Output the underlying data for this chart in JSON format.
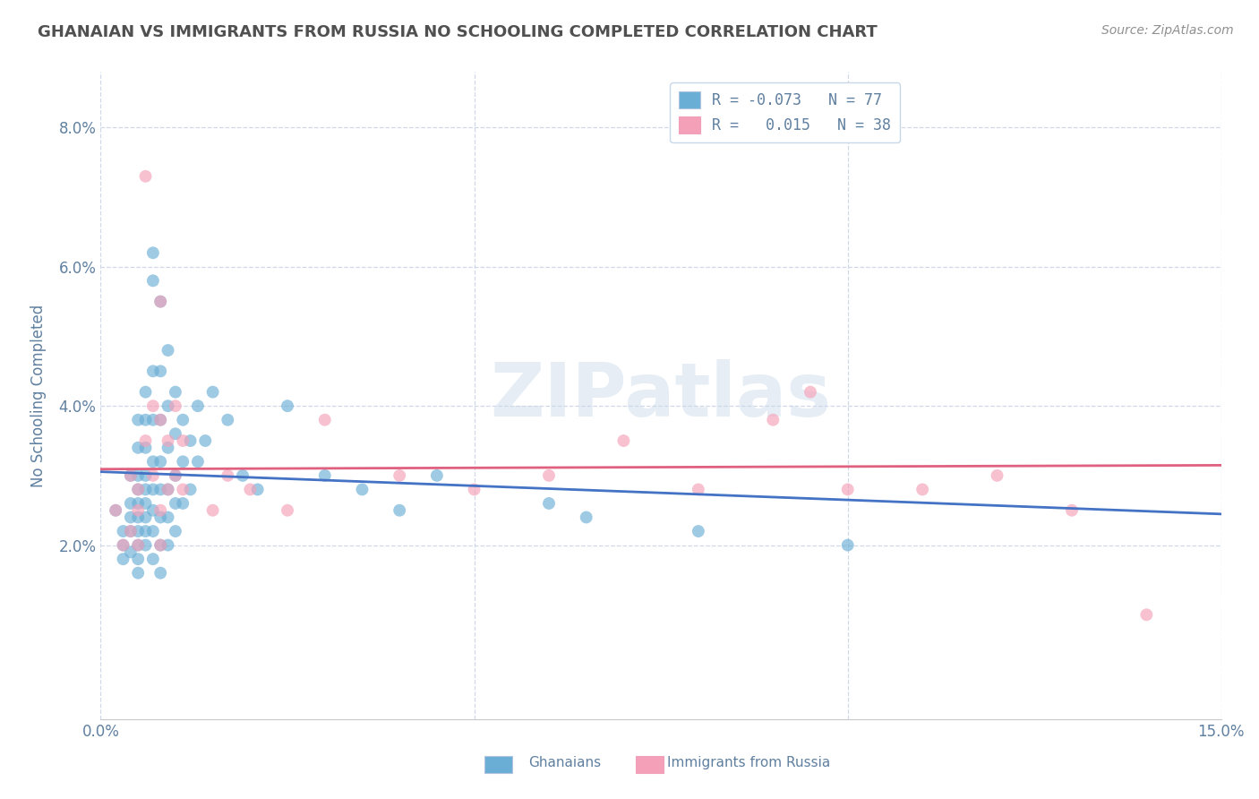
{
  "title": "GHANAIAN VS IMMIGRANTS FROM RUSSIA NO SCHOOLING COMPLETED CORRELATION CHART",
  "source": "Source: ZipAtlas.com",
  "ylabel": "No Schooling Completed",
  "xlim": [
    0.0,
    0.15
  ],
  "ylim": [
    -0.005,
    0.088
  ],
  "legend_entries": [
    {
      "label": "R = -0.073   N = 77",
      "facecolor": "#aec6e8"
    },
    {
      "label": "R =   0.015   N = 38",
      "facecolor": "#f4b8c8"
    }
  ],
  "blue_color": "#6aaed6",
  "pink_color": "#f4a0b8",
  "blue_line_color": "#4472c4",
  "pink_line_color": "#e06080",
  "watermark": "ZIPatlas",
  "blue_R": -0.073,
  "pink_R": 0.015,
  "background_color": "#ffffff",
  "grid_color": "#d0d8e8",
  "title_color": "#505050",
  "axis_color": "#6080a0",
  "tick_color": "#6080a0",
  "blue_scatter": [
    [
      0.002,
      0.025
    ],
    [
      0.003,
      0.022
    ],
    [
      0.003,
      0.02
    ],
    [
      0.003,
      0.018
    ],
    [
      0.004,
      0.03
    ],
    [
      0.004,
      0.026
    ],
    [
      0.004,
      0.024
    ],
    [
      0.004,
      0.022
    ],
    [
      0.004,
      0.019
    ],
    [
      0.005,
      0.038
    ],
    [
      0.005,
      0.034
    ],
    [
      0.005,
      0.03
    ],
    [
      0.005,
      0.028
    ],
    [
      0.005,
      0.026
    ],
    [
      0.005,
      0.024
    ],
    [
      0.005,
      0.022
    ],
    [
      0.005,
      0.02
    ],
    [
      0.005,
      0.018
    ],
    [
      0.005,
      0.016
    ],
    [
      0.006,
      0.042
    ],
    [
      0.006,
      0.038
    ],
    [
      0.006,
      0.034
    ],
    [
      0.006,
      0.03
    ],
    [
      0.006,
      0.028
    ],
    [
      0.006,
      0.026
    ],
    [
      0.006,
      0.024
    ],
    [
      0.006,
      0.022
    ],
    [
      0.006,
      0.02
    ],
    [
      0.007,
      0.062
    ],
    [
      0.007,
      0.058
    ],
    [
      0.007,
      0.045
    ],
    [
      0.007,
      0.038
    ],
    [
      0.007,
      0.032
    ],
    [
      0.007,
      0.028
    ],
    [
      0.007,
      0.025
    ],
    [
      0.007,
      0.022
    ],
    [
      0.007,
      0.018
    ],
    [
      0.008,
      0.055
    ],
    [
      0.008,
      0.045
    ],
    [
      0.008,
      0.038
    ],
    [
      0.008,
      0.032
    ],
    [
      0.008,
      0.028
    ],
    [
      0.008,
      0.024
    ],
    [
      0.008,
      0.02
    ],
    [
      0.008,
      0.016
    ],
    [
      0.009,
      0.048
    ],
    [
      0.009,
      0.04
    ],
    [
      0.009,
      0.034
    ],
    [
      0.009,
      0.028
    ],
    [
      0.009,
      0.024
    ],
    [
      0.009,
      0.02
    ],
    [
      0.01,
      0.042
    ],
    [
      0.01,
      0.036
    ],
    [
      0.01,
      0.03
    ],
    [
      0.01,
      0.026
    ],
    [
      0.01,
      0.022
    ],
    [
      0.011,
      0.038
    ],
    [
      0.011,
      0.032
    ],
    [
      0.011,
      0.026
    ],
    [
      0.012,
      0.035
    ],
    [
      0.012,
      0.028
    ],
    [
      0.013,
      0.04
    ],
    [
      0.013,
      0.032
    ],
    [
      0.014,
      0.035
    ],
    [
      0.015,
      0.042
    ],
    [
      0.017,
      0.038
    ],
    [
      0.019,
      0.03
    ],
    [
      0.021,
      0.028
    ],
    [
      0.025,
      0.04
    ],
    [
      0.03,
      0.03
    ],
    [
      0.035,
      0.028
    ],
    [
      0.04,
      0.025
    ],
    [
      0.045,
      0.03
    ],
    [
      0.06,
      0.026
    ],
    [
      0.065,
      0.024
    ],
    [
      0.08,
      0.022
    ],
    [
      0.1,
      0.02
    ]
  ],
  "pink_scatter": [
    [
      0.002,
      0.025
    ],
    [
      0.003,
      0.02
    ],
    [
      0.004,
      0.03
    ],
    [
      0.004,
      0.022
    ],
    [
      0.005,
      0.028
    ],
    [
      0.005,
      0.025
    ],
    [
      0.005,
      0.02
    ],
    [
      0.006,
      0.035
    ],
    [
      0.006,
      0.073
    ],
    [
      0.007,
      0.04
    ],
    [
      0.007,
      0.03
    ],
    [
      0.008,
      0.038
    ],
    [
      0.008,
      0.055
    ],
    [
      0.008,
      0.025
    ],
    [
      0.008,
      0.02
    ],
    [
      0.009,
      0.035
    ],
    [
      0.009,
      0.028
    ],
    [
      0.01,
      0.04
    ],
    [
      0.01,
      0.03
    ],
    [
      0.011,
      0.035
    ],
    [
      0.011,
      0.028
    ],
    [
      0.015,
      0.025
    ],
    [
      0.017,
      0.03
    ],
    [
      0.02,
      0.028
    ],
    [
      0.025,
      0.025
    ],
    [
      0.03,
      0.038
    ],
    [
      0.04,
      0.03
    ],
    [
      0.05,
      0.028
    ],
    [
      0.06,
      0.03
    ],
    [
      0.07,
      0.035
    ],
    [
      0.08,
      0.028
    ],
    [
      0.09,
      0.038
    ],
    [
      0.1,
      0.028
    ],
    [
      0.11,
      0.028
    ],
    [
      0.12,
      0.03
    ],
    [
      0.13,
      0.025
    ],
    [
      0.14,
      0.01
    ],
    [
      0.095,
      0.042
    ]
  ]
}
